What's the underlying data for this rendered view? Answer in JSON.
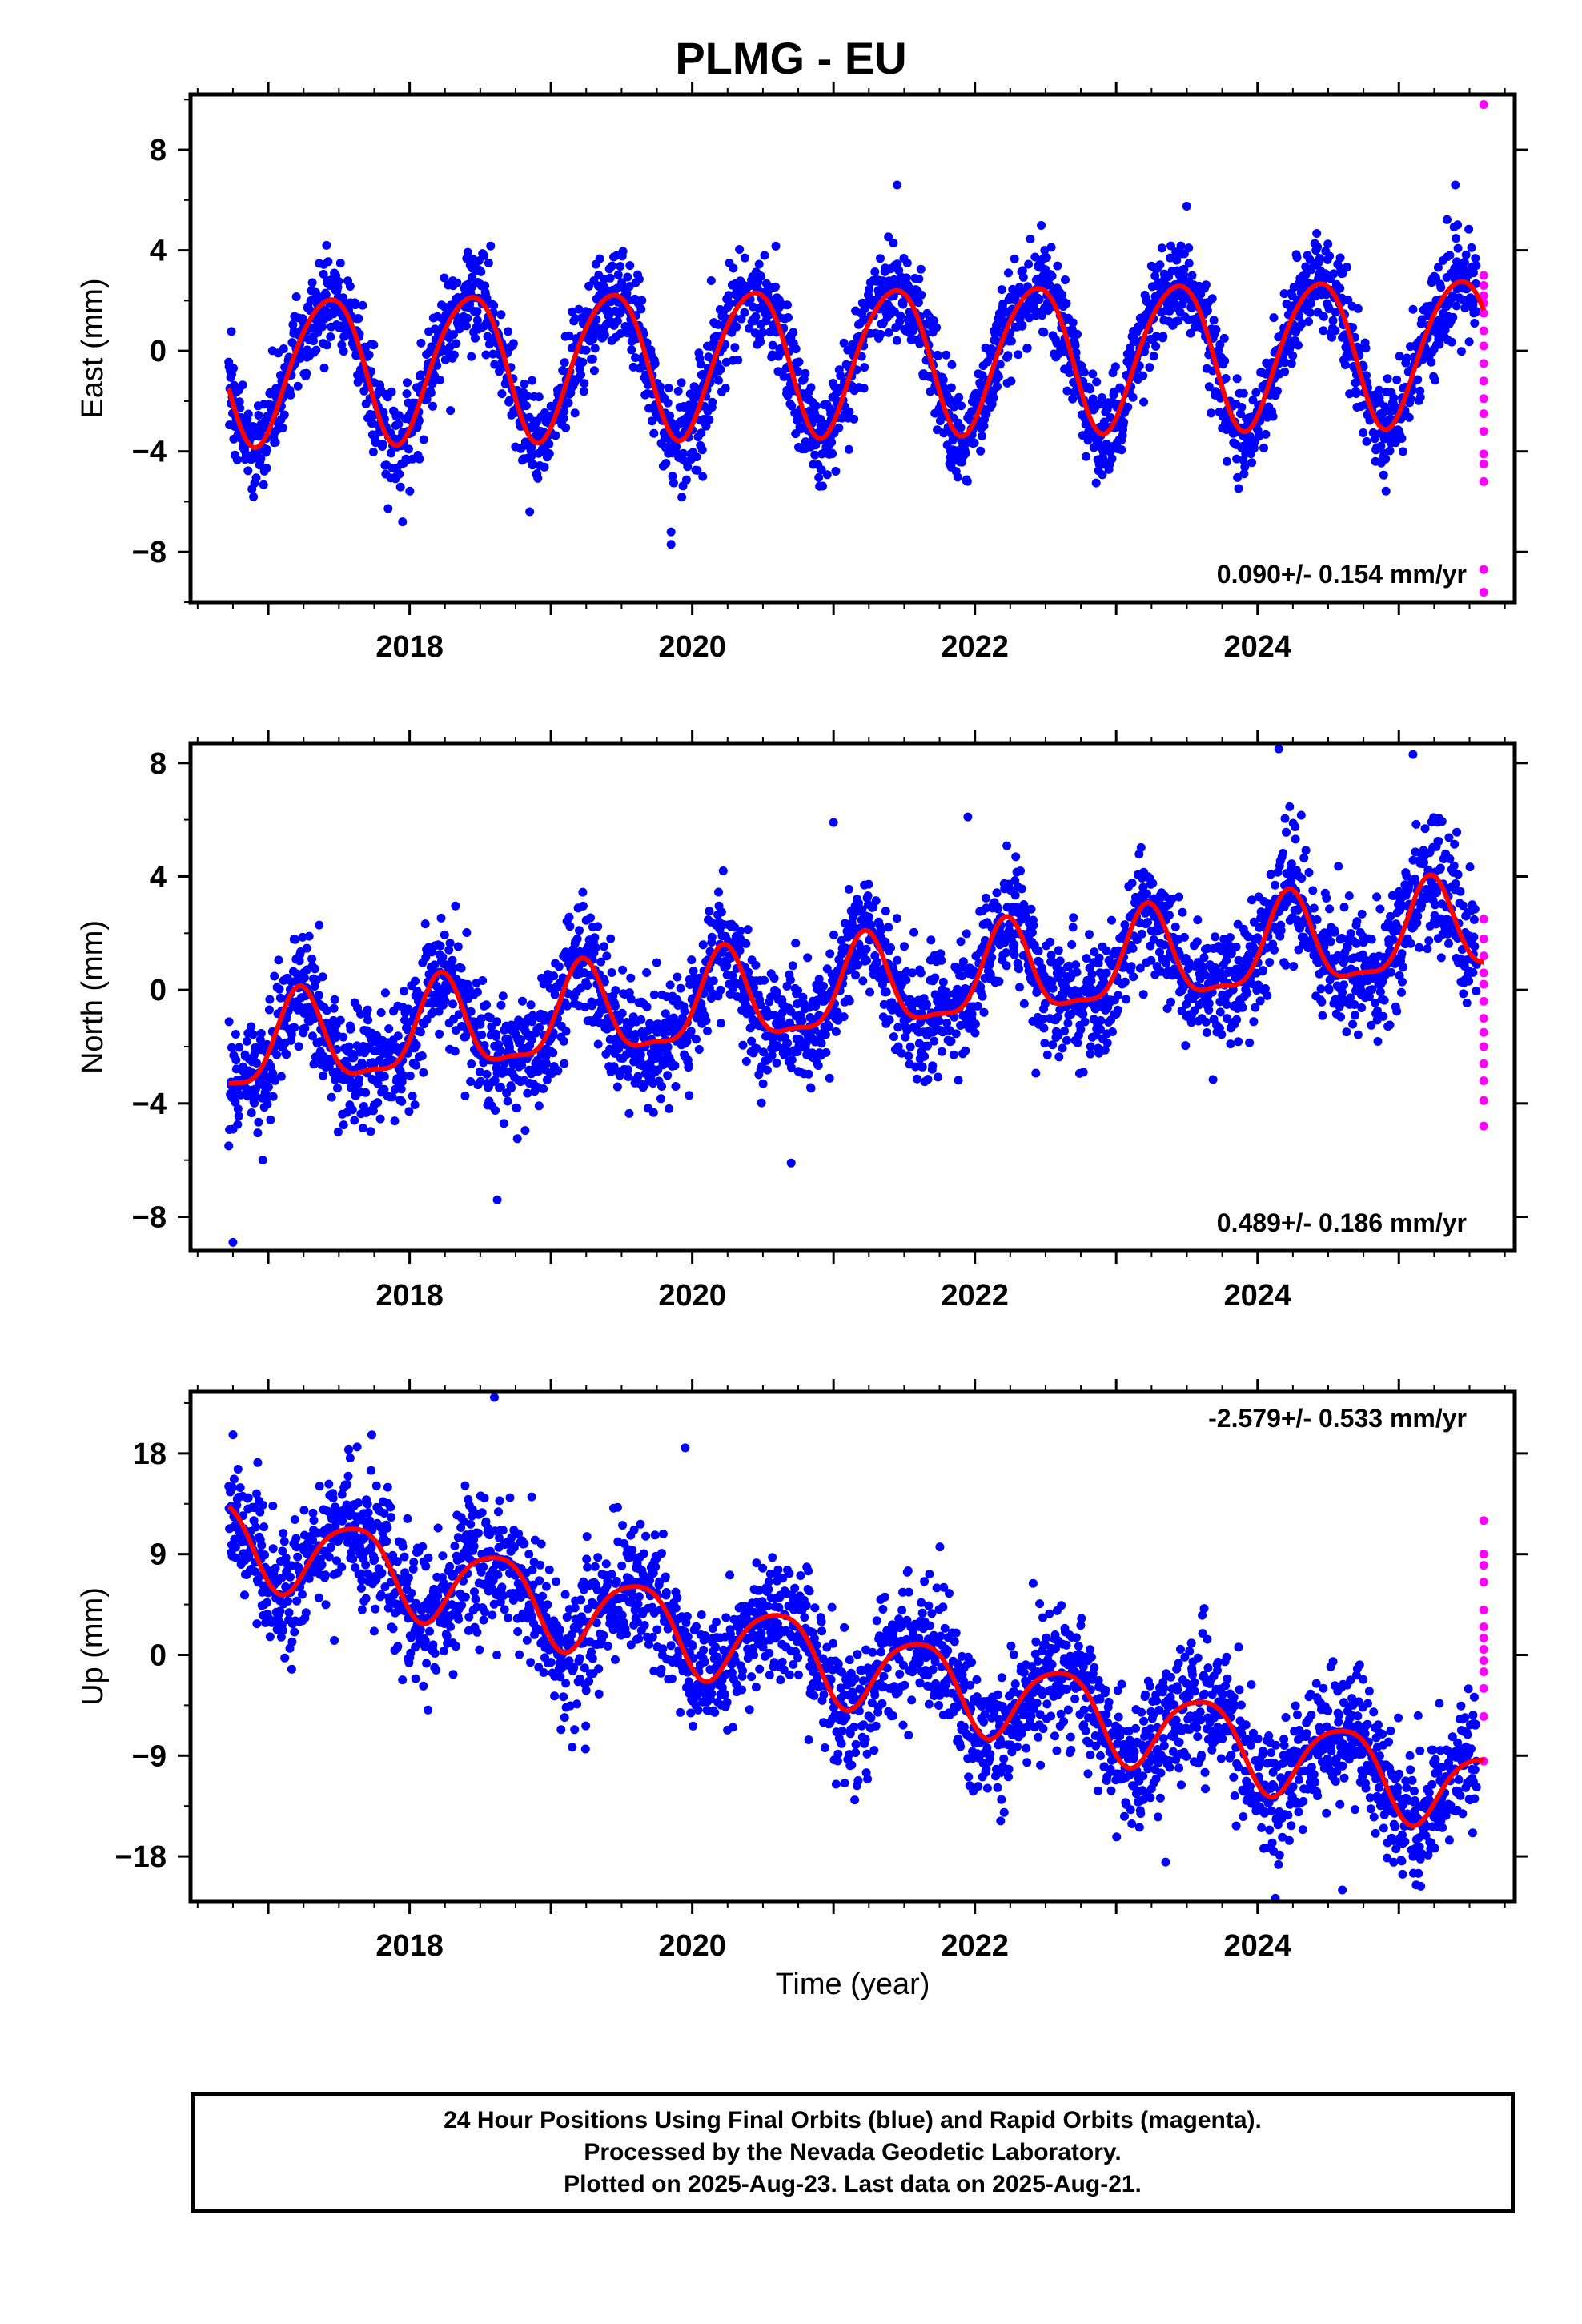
{
  "title": "PLMG - EU",
  "xlabel": "Time (year)",
  "footer": [
    "24 Hour Positions Using Final Orbits (blue) and Rapid Orbits (magenta).",
    "Processed by the Nevada Geodetic Laboratory.",
    "Plotted on 2025-Aug-23. Last data on 2025-Aug-21."
  ],
  "colors": {
    "final": "#0000ff",
    "rapid": "#ff00ff",
    "model": "#ff0000",
    "frame": "#000000"
  },
  "chart_data": [
    {
      "type": "scatter",
      "ylabel": "East (mm)",
      "rate_label": "0.090+/- 0.154 mm/yr",
      "rate_position": "bottom-right",
      "xlim": [
        2016.45,
        2025.82
      ],
      "ylim": [
        -10.0,
        10.2
      ],
      "yticks": [
        -8,
        -4,
        0,
        4,
        8
      ],
      "yticklabels": [
        "−8",
        "−4",
        "0",
        "4",
        "8"
      ],
      "xticks": [
        2018,
        2020,
        2022,
        2024
      ],
      "xticklabels": [
        "2018",
        "2020",
        "2022",
        "2024"
      ],
      "start": 2016.72,
      "end": 2025.55,
      "trend": {
        "offset": -0.7,
        "rate": 0.09
      },
      "annual": {
        "amp": 2.9,
        "phase": 2017.17
      },
      "semiannual": {
        "amp": 0.3,
        "phase": 2017.0
      },
      "noise_sd": 0.95,
      "rapid_x": 2025.6,
      "rapid_y": [
        9.8,
        3.0,
        2.6,
        2.2,
        1.9,
        1.5,
        0.8,
        0.2,
        -0.5,
        -1.2,
        -1.9,
        -2.5,
        -3.2,
        -4.1,
        -4.5,
        -5.2,
        -8.7,
        -9.6
      ],
      "outliers": [
        [
          2021.45,
          6.6
        ],
        [
          2019.85,
          -7.7
        ],
        [
          2019.85,
          -7.2
        ],
        [
          2017.95,
          -6.8
        ],
        [
          2018.85,
          -6.4
        ],
        [
          2025.4,
          6.6
        ]
      ]
    },
    {
      "type": "scatter",
      "ylabel": "North (mm)",
      "rate_label": "0.489+/- 0.186 mm/yr",
      "rate_position": "bottom-right",
      "xlim": [
        2016.45,
        2025.82
      ],
      "ylim": [
        -9.2,
        8.7
      ],
      "yticks": [
        -8,
        -4,
        0,
        4,
        8
      ],
      "yticklabels": [
        "−8",
        "−4",
        "0",
        "4",
        "8"
      ],
      "xticks": [
        2018,
        2020,
        2022,
        2024
      ],
      "xticklabels": [
        "2018",
        "2020",
        "2022",
        "2024"
      ],
      "start": 2016.72,
      "end": 2025.55,
      "trend": {
        "offset": -2.2,
        "rate": 0.489
      },
      "annual": {
        "amp": 1.6,
        "phase": 2016.97
      },
      "semiannual": {
        "amp": 0.5,
        "phase": 2017.1
      },
      "noise_sd": 1.05,
      "rapid_x": 2025.6,
      "rapid_y": [
        2.5,
        1.8,
        1.2,
        0.6,
        0.2,
        -0.4,
        -1.0,
        -1.5,
        -2.0,
        -2.6,
        -3.2,
        -3.9,
        -4.8
      ],
      "outliers": [
        [
          2016.75,
          -8.9
        ],
        [
          2018.62,
          -7.4
        ],
        [
          2024.15,
          8.5
        ],
        [
          2025.1,
          8.3
        ],
        [
          2021.0,
          5.9
        ],
        [
          2021.95,
          6.1
        ],
        [
          2020.7,
          -6.1
        ]
      ]
    },
    {
      "type": "scatter",
      "ylabel": "Up (mm)",
      "rate_label": "-2.579+/- 0.533 mm/yr",
      "rate_position": "top-right",
      "xlim": [
        2016.45,
        2025.82
      ],
      "ylim": [
        -22.0,
        23.5
      ],
      "yticks": [
        -18,
        -9,
        0,
        9,
        18
      ],
      "yticklabels": [
        "−18",
        "−9",
        "0",
        "9",
        "18"
      ],
      "xticks": [
        2018,
        2020,
        2022,
        2024
      ],
      "xticklabels": [
        "2018",
        "2020",
        "2022",
        "2024"
      ],
      "start": 2016.72,
      "end": 2025.55,
      "trend": {
        "offset": 10.5,
        "rate": -2.579
      },
      "annual": {
        "amp": 3.6,
        "phase": 2017.35
      },
      "semiannual": {
        "amp": 0.6,
        "phase": 2017.2
      },
      "noise_sd": 3.0,
      "rapid_x": 2025.6,
      "rapid_y": [
        12.0,
        9.0,
        8.0,
        6.5,
        4.0,
        2.5,
        1.5,
        0.5,
        -0.5,
        -1.5,
        -3.0,
        -5.5,
        -9.5
      ],
      "outliers": [
        [
          2018.6,
          23.0
        ],
        [
          2019.95,
          18.5
        ],
        [
          2024.6,
          -21.0
        ],
        [
          2023.35,
          -18.5
        ],
        [
          2025.1,
          -18.0
        ]
      ]
    }
  ]
}
